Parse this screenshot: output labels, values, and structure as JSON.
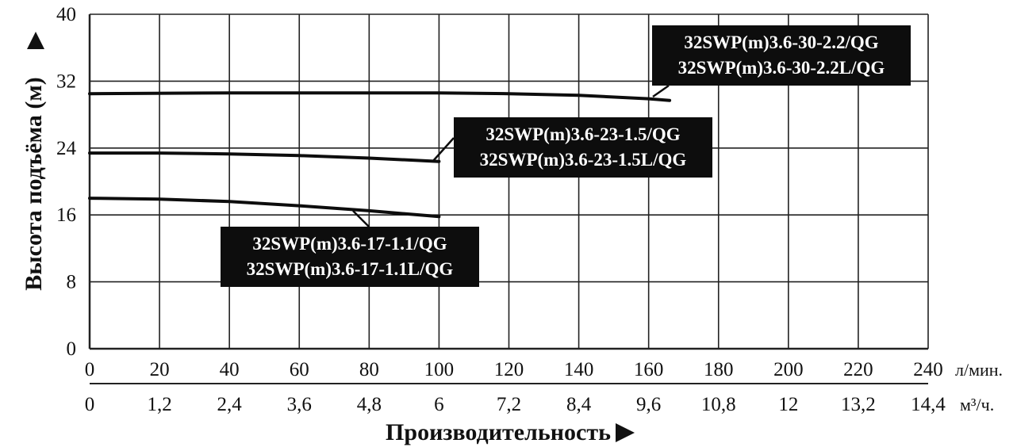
{
  "chart_data": {
    "type": "line",
    "ylabel": "Высота подъёма (м)",
    "xlabel": "Производительность",
    "ylim": [
      0,
      40
    ],
    "xlim": [
      0,
      240
    ],
    "grid": true,
    "y_ticks": [
      "0",
      "8",
      "16",
      "24",
      "32",
      "40"
    ],
    "x_ticks_primary": [
      "0",
      "20",
      "40",
      "60",
      "80",
      "100",
      "120",
      "140",
      "160",
      "180",
      "200",
      "220",
      "240"
    ],
    "x_unit_primary": "л/мин.",
    "x_ticks_secondary": [
      "0",
      "1,2",
      "2,4",
      "3,6",
      "4,8",
      "6",
      "7,2",
      "8,4",
      "9,6",
      "10,8",
      "12",
      "13,2",
      "14,4"
    ],
    "x_unit_secondary": "м³/ч.",
    "series": [
      {
        "name": "32SWP(m)3.6-30-2.2/QG / 32SWP(m)3.6-30-2.2L/QG",
        "labels": [
          "32SWP(m)3.6-30-2.2/QG",
          "32SWP(m)3.6-30-2.2L/QG"
        ],
        "x": [
          0,
          40,
          80,
          100,
          120,
          140,
          160,
          166
        ],
        "y": [
          30.5,
          30.6,
          30.6,
          30.6,
          30.5,
          30.3,
          29.9,
          29.7
        ]
      },
      {
        "name": "32SWP(m)3.6-23-1.5/QG / 32SWP(m)3.6-23-1.5L/QG",
        "labels": [
          "32SWP(m)3.6-23-1.5/QG",
          "32SWP(m)3.6-23-1.5L/QG"
        ],
        "x": [
          0,
          20,
          40,
          60,
          80,
          100
        ],
        "y": [
          23.4,
          23.4,
          23.3,
          23.1,
          22.8,
          22.4
        ]
      },
      {
        "name": "32SWP(m)3.6-17-1.1/QG / 32SWP(m)3.6-17-1.1L/QG",
        "labels": [
          "32SWP(m)3.6-17-1.1/QG",
          "32SWP(m)3.6-17-1.1L/QG"
        ],
        "x": [
          0,
          20,
          40,
          60,
          80,
          100
        ],
        "y": [
          18.0,
          17.9,
          17.6,
          17.1,
          16.5,
          15.8
        ]
      }
    ]
  }
}
